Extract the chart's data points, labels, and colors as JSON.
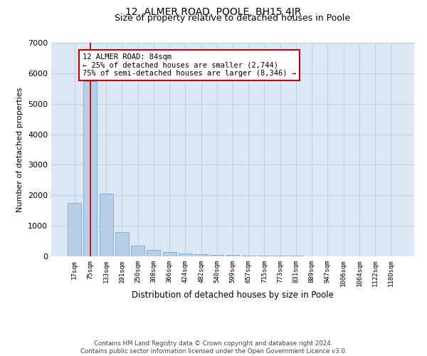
{
  "title": "12, ALMER ROAD, POOLE, BH15 4JR",
  "subtitle": "Size of property relative to detached houses in Poole",
  "xlabel": "Distribution of detached houses by size in Poole",
  "ylabel": "Number of detached properties",
  "categories": [
    "17sqm",
    "75sqm",
    "133sqm",
    "191sqm",
    "250sqm",
    "308sqm",
    "366sqm",
    "424sqm",
    "482sqm",
    "540sqm",
    "599sqm",
    "657sqm",
    "715sqm",
    "773sqm",
    "831sqm",
    "889sqm",
    "947sqm",
    "1006sqm",
    "1064sqm",
    "1122sqm",
    "1180sqm"
  ],
  "values": [
    1750,
    5750,
    2050,
    790,
    340,
    210,
    130,
    85,
    70,
    55,
    45,
    30,
    20,
    15,
    12,
    8,
    6,
    5,
    4,
    3,
    2
  ],
  "bar_color": "#b8cfe8",
  "bar_edge_color": "#7aaad0",
  "vline_color": "#cc0000",
  "vline_x": 1,
  "annotation_title": "12 ALMER ROAD: 84sqm",
  "annotation_line1": "← 25% of detached houses are smaller (2,744)",
  "annotation_line2": "75% of semi-detached houses are larger (8,346) →",
  "annotation_box_color": "#ffffff",
  "annotation_box_edge": "#cc0000",
  "ylim": [
    0,
    7000
  ],
  "yticks": [
    0,
    1000,
    2000,
    3000,
    4000,
    5000,
    6000,
    7000
  ],
  "background_color": "#ffffff",
  "plot_bg_color": "#dce8f5",
  "grid_color": "#c0cfe0",
  "footnote1": "Contains HM Land Registry data © Crown copyright and database right 2024.",
  "footnote2": "Contains public sector information licensed under the Open Government Licence v3.0."
}
